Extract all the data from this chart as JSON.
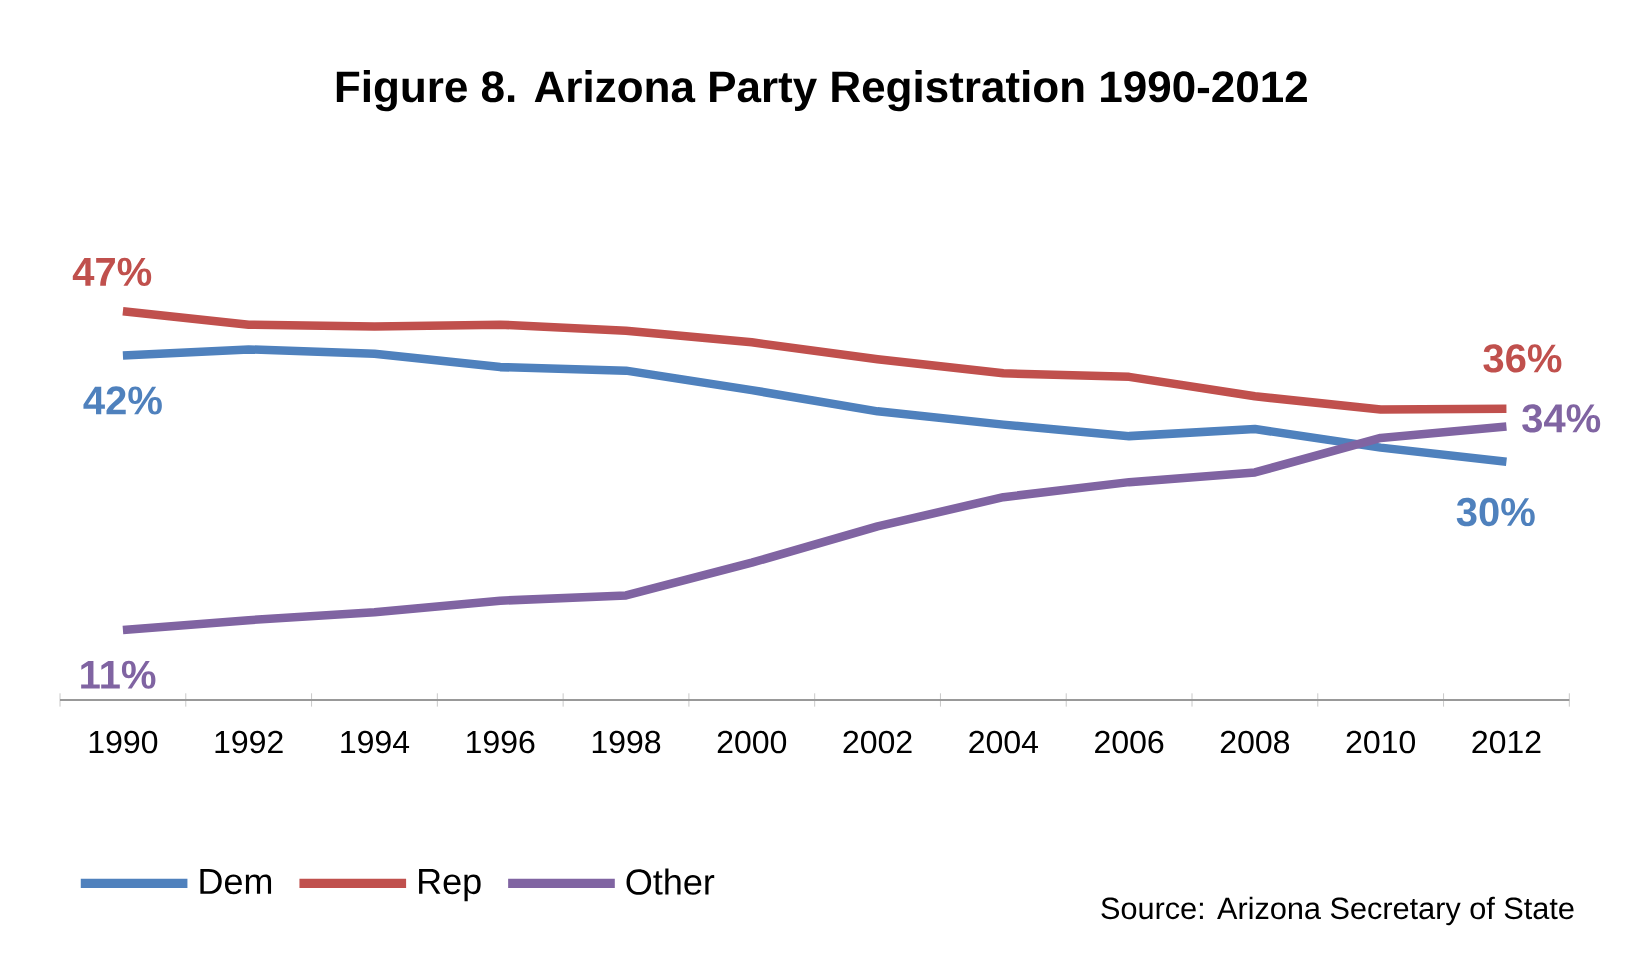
{
  "chart_data": {
    "type": "line",
    "title": "Figure 8. Arizona Party Registration 1990-2012",
    "categories": [
      "1990",
      "1992",
      "1994",
      "1996",
      "1998",
      "2000",
      "2002",
      "2004",
      "2006",
      "2008",
      "2010",
      "2012"
    ],
    "series": [
      {
        "name": "Dem",
        "color": "#4f81bd",
        "values": [
          42,
          42.7,
          42.2,
          40.7,
          40.3,
          38.1,
          35.7,
          34.2,
          32.9,
          33.7,
          31.6,
          30
        ],
        "value_labels": [
          "42%",
          null,
          null,
          null,
          null,
          null,
          null,
          null,
          null,
          null,
          null,
          "30%"
        ]
      },
      {
        "name": "Rep",
        "color": "#c0504d",
        "values": [
          47,
          45.5,
          45.3,
          45.5,
          44.8,
          43.5,
          41.6,
          40.0,
          39.6,
          37.4,
          35.9,
          36
        ],
        "value_labels": [
          "47%",
          null,
          null,
          null,
          null,
          null,
          null,
          null,
          null,
          null,
          null,
          "36%"
        ]
      },
      {
        "name": "Other",
        "color": "#8064a2",
        "values": [
          11,
          12.1,
          13.0,
          14.3,
          14.9,
          18.6,
          22.7,
          26.0,
          27.7,
          28.8,
          32.7,
          34
        ],
        "value_labels": [
          "11%",
          null,
          null,
          null,
          null,
          null,
          null,
          null,
          null,
          null,
          null,
          "34%"
        ]
      }
    ],
    "legend": "bottom left",
    "marker": "none",
    "line_style": "solid",
    "annotations": [
      "Source: Arizona Secretary of State"
    ]
  }
}
